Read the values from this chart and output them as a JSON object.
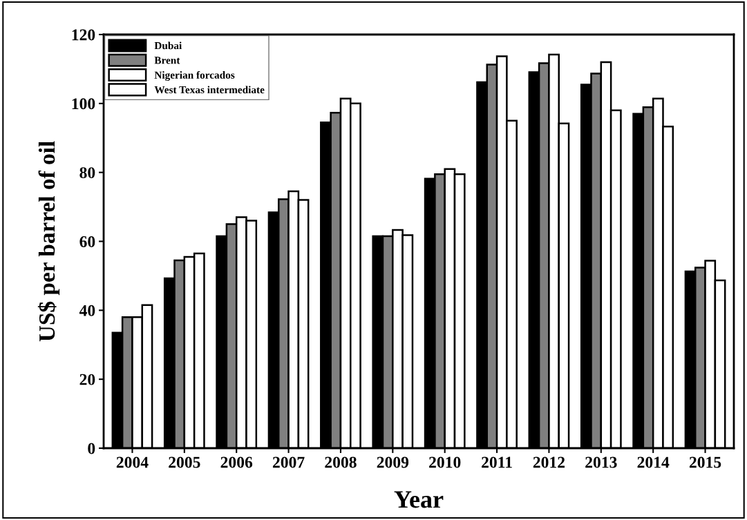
{
  "chart_data": {
    "type": "bar",
    "xlabel": "Year",
    "ylabel": "US$ per barrel of oil",
    "categories": [
      "2004",
      "2005",
      "2006",
      "2007",
      "2008",
      "2009",
      "2010",
      "2011",
      "2012",
      "2013",
      "2014",
      "2015"
    ],
    "series": [
      {
        "name": "Dubai",
        "color": "#000000",
        "values": [
          33.5,
          49.3,
          61.5,
          68.4,
          94.5,
          61.5,
          78.2,
          106.2,
          109.1,
          105.5,
          97,
          51.3
        ]
      },
      {
        "name": "Brent",
        "color": "#808080",
        "values": [
          38,
          54.5,
          65,
          72.2,
          97.3,
          61.5,
          79.5,
          111.3,
          111.7,
          108.7,
          98.9,
          52.4
        ]
      },
      {
        "name": "Nigerian forcados",
        "color": "#ffffff",
        "values": [
          38,
          55.5,
          67,
          74.5,
          101.4,
          63.3,
          81,
          113.7,
          114.2,
          112,
          101.4,
          54.4
        ]
      },
      {
        "name": "West Texas intermediate",
        "color": "#ffffff",
        "values": [
          41.5,
          56.5,
          66,
          72,
          100,
          61.8,
          79.5,
          95,
          94.2,
          98,
          93.3,
          48.7
        ]
      }
    ],
    "ylim": [
      0,
      120
    ],
    "yticks": [
      0,
      20,
      40,
      60,
      80,
      100,
      120
    ],
    "grid": false,
    "legend": "top left"
  }
}
